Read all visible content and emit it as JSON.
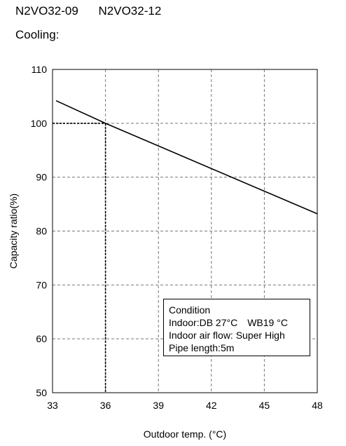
{
  "header": {
    "models": [
      "N2VO32-09",
      "N2VO32-12"
    ],
    "section": "Cooling:"
  },
  "chart_data": {
    "type": "line",
    "title": "",
    "xlabel": "Outdoor temp. (°C)",
    "ylabel": "Capacity ratio(%)",
    "xlim": [
      33,
      48
    ],
    "ylim": [
      50,
      110
    ],
    "xticks": [
      33,
      36,
      39,
      42,
      45,
      48
    ],
    "yticks": [
      50,
      60,
      70,
      80,
      90,
      100,
      110
    ],
    "grid": true,
    "series": [
      {
        "x": [
          33.2,
          36,
          48
        ],
        "y": [
          104.2,
          100,
          83.2
        ]
      }
    ],
    "reference": {
      "x": 36,
      "y": 100
    },
    "annotation": {
      "title": "Condition",
      "indoor": "Indoor:DB 27°C",
      "wb": "WB19 °C",
      "airflow": "Indoor air flow: Super High",
      "pipe": "Pipe length:5m"
    }
  }
}
